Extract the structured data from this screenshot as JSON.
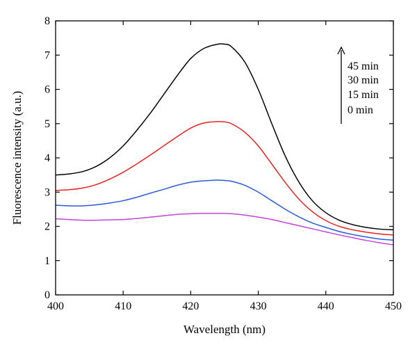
{
  "chart_data": {
    "type": "line",
    "xlabel": "Wavelength (nm)",
    "ylabel": "Fluorescence intensity (a.u.)",
    "xlim": [
      400,
      450
    ],
    "ylim": [
      0,
      8
    ],
    "xticks": [
      400,
      410,
      420,
      430,
      440,
      450
    ],
    "yticks": [
      0,
      1,
      2,
      3,
      4,
      5,
      6,
      7,
      8
    ],
    "grid": false,
    "legend_position": "top-right",
    "annotation": "arrow pointing up beside legend (increasing time)",
    "legend": [
      "45 min",
      "30 min",
      "15 min",
      "0 min"
    ],
    "x": [
      400,
      402,
      404,
      406,
      408,
      410,
      412,
      414,
      416,
      418,
      420,
      422,
      424,
      425,
      426,
      428,
      430,
      432,
      434,
      436,
      438,
      440,
      442,
      444,
      446,
      448,
      450
    ],
    "series": [
      {
        "name": "45 min",
        "color": "#000000",
        "values": [
          3.5,
          3.53,
          3.6,
          3.75,
          4.0,
          4.35,
          4.8,
          5.3,
          5.85,
          6.4,
          6.9,
          7.2,
          7.32,
          7.32,
          7.25,
          6.8,
          6.0,
          5.0,
          4.05,
          3.3,
          2.75,
          2.4,
          2.18,
          2.05,
          1.97,
          1.92,
          1.9
        ]
      },
      {
        "name": "30 min",
        "color": "#e8231f",
        "values": [
          3.05,
          3.07,
          3.12,
          3.22,
          3.38,
          3.58,
          3.82,
          4.08,
          4.35,
          4.62,
          4.87,
          5.02,
          5.06,
          5.05,
          5.0,
          4.75,
          4.35,
          3.82,
          3.28,
          2.8,
          2.43,
          2.17,
          2.0,
          1.9,
          1.83,
          1.78,
          1.75
        ]
      },
      {
        "name": "15 min",
        "color": "#2a5bd7",
        "values": [
          2.62,
          2.6,
          2.6,
          2.63,
          2.68,
          2.75,
          2.85,
          2.97,
          3.08,
          3.2,
          3.29,
          3.33,
          3.35,
          3.34,
          3.32,
          3.2,
          3.0,
          2.75,
          2.5,
          2.28,
          2.1,
          1.97,
          1.85,
          1.76,
          1.69,
          1.63,
          1.6
        ]
      },
      {
        "name": "0 min",
        "color": "#c045d8",
        "values": [
          2.22,
          2.2,
          2.18,
          2.18,
          2.19,
          2.2,
          2.23,
          2.27,
          2.31,
          2.35,
          2.37,
          2.38,
          2.38,
          2.38,
          2.37,
          2.33,
          2.27,
          2.2,
          2.11,
          2.02,
          1.93,
          1.84,
          1.75,
          1.67,
          1.59,
          1.52,
          1.46
        ]
      }
    ]
  }
}
